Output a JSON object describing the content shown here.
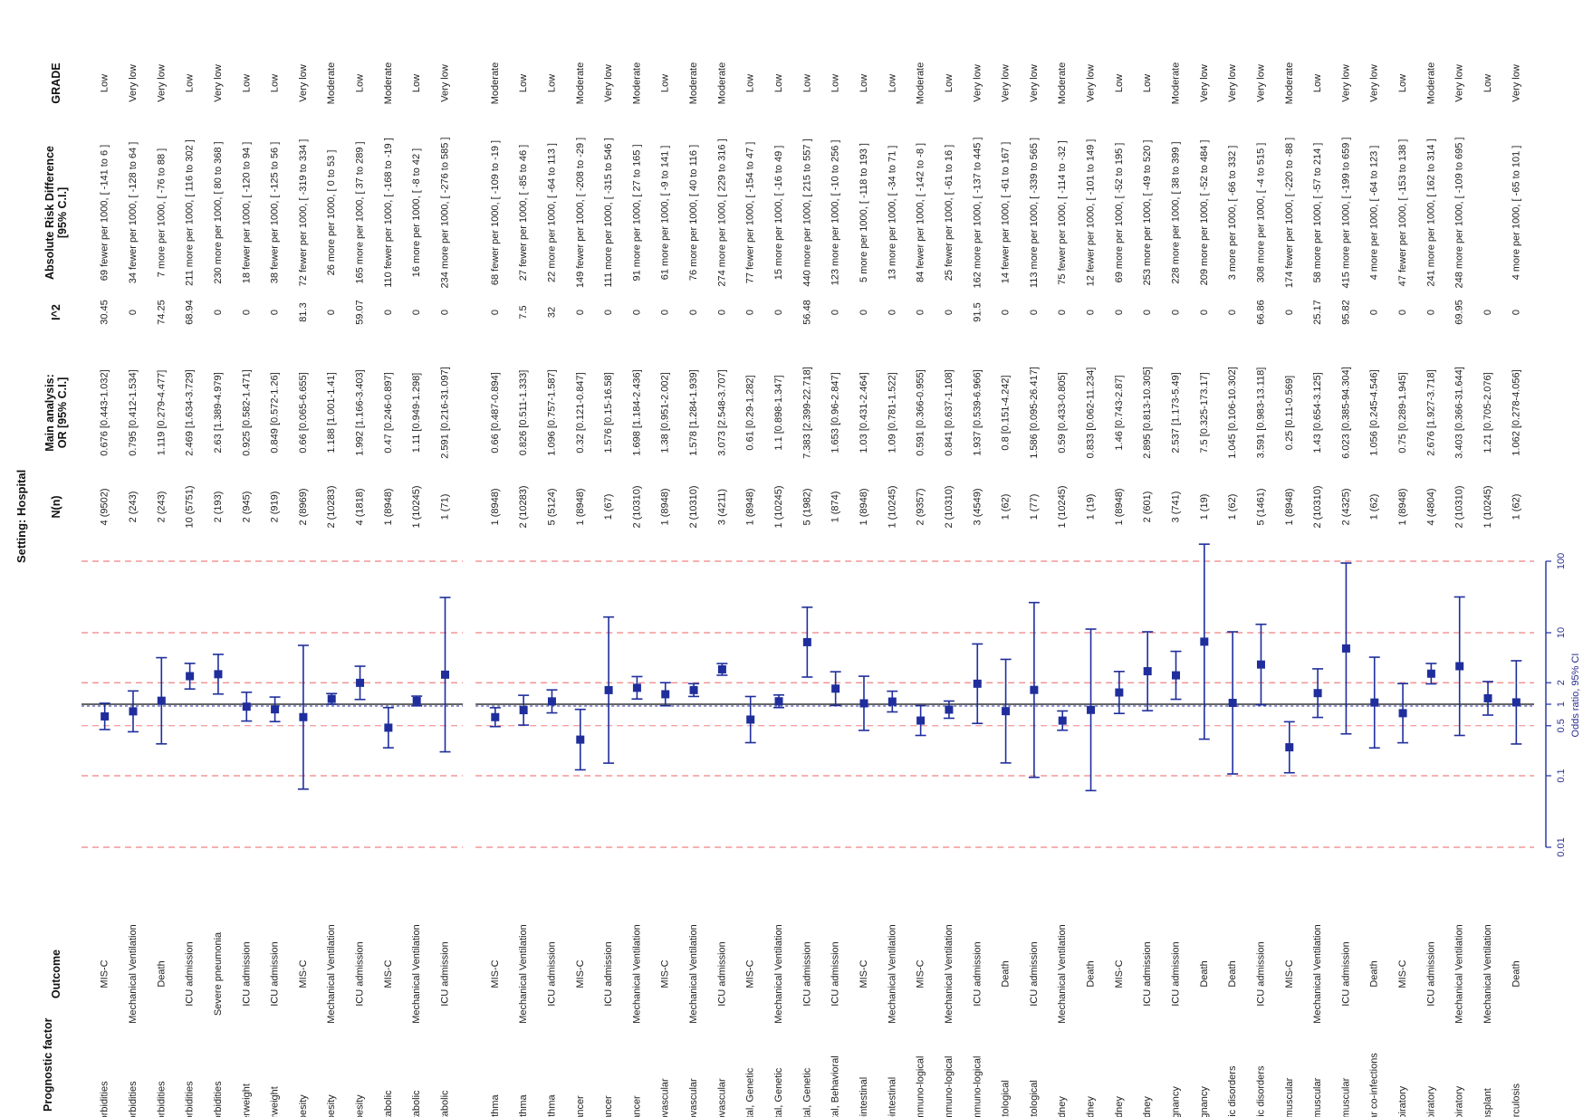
{
  "title": "Setting: Hospital",
  "headers": {
    "factor": "Prognostic factor",
    "outcome": "Outcome",
    "n": "N(n)",
    "or_line1": "Main analysis:",
    "or_line2": "OR [95% C.I.]",
    "i2": "I^2",
    "ard_line1": "Absolute Risk Difference",
    "ard_line2": "[95% C.I.]",
    "grade": "GRADE"
  },
  "axis_label": "Odds ratio, 95% CI",
  "colors": {
    "marker": "#1f2e9c",
    "ref_line": "#1f2e9c",
    "grid_dash": "#f08080",
    "text": "#222222"
  },
  "chart_data": {
    "type": "scatter",
    "subtype": "forest-plot",
    "x_scale": "log",
    "xlim": [
      0.01,
      100
    ],
    "ticks": [
      0.01,
      0.1,
      0.5,
      1,
      2,
      10,
      100
    ],
    "tick_labels": [
      "0.01",
      "0.1",
      "0.5",
      "1",
      "2",
      "10",
      "100"
    ],
    "reference_line": 1,
    "groups": [
      {
        "rows": [
          {
            "factor": "Comorbidities",
            "outcome": "MIS-C",
            "n": "4 (9502)",
            "or_text": "0.676 [0.443-1.032]",
            "i2": "30.45",
            "ard": "69 fewer per 1000, [ -141 to 6 ]",
            "grade": "Low",
            "or": 0.676,
            "lo": 0.443,
            "hi": 1.032
          },
          {
            "factor": "Comorbidities",
            "outcome": "Mechanical Ventilation",
            "n": "2 (243)",
            "or_text": "0.795 [0.412-1.534]",
            "i2": "0",
            "ard": "34 fewer per 1000, [ -128 to 64 ]",
            "grade": "Very low",
            "or": 0.795,
            "lo": 0.412,
            "hi": 1.534
          },
          {
            "factor": "Comorbidities",
            "outcome": "Death",
            "n": "2 (243)",
            "or_text": "1.119 [0.279-4.477]",
            "i2": "74.25",
            "ard": "7 more per 1000, [ -76 to 88 ]",
            "grade": "Very low",
            "or": 1.119,
            "lo": 0.279,
            "hi": 4.477
          },
          {
            "factor": "Comorbidities",
            "outcome": "ICU admission",
            "n": "10 (5751)",
            "or_text": "2.469 [1.634-3.729]",
            "i2": "68.94",
            "ard": "211 more per 1000, [ 116 to 302 ]",
            "grade": "Low",
            "or": 2.469,
            "lo": 1.634,
            "hi": 3.729
          },
          {
            "factor": "Comorbidities",
            "outcome": "Severe pneumonia",
            "n": "2 (193)",
            "or_text": "2.63 [1.389-4.979]",
            "i2": "0",
            "ard": "230 more per 1000, [ 80 to 368 ]",
            "grade": "Very low",
            "or": 2.63,
            "lo": 1.389,
            "hi": 4.979
          },
          {
            "factor": "Underweight",
            "outcome": "ICU admission",
            "n": "2 (945)",
            "or_text": "0.925 [0.582-1.471]",
            "i2": "0",
            "ard": "18 fewer per 1000, [ -120 to 94 ]",
            "grade": "Low",
            "or": 0.925,
            "lo": 0.582,
            "hi": 1.471
          },
          {
            "factor": "Overweight",
            "outcome": "ICU admission",
            "n": "2 (919)",
            "or_text": "0.849 [0.572-1.26]",
            "i2": "0",
            "ard": "38 fewer per 1000, [ -125 to 56 ]",
            "grade": "Low",
            "or": 0.849,
            "lo": 0.572,
            "hi": 1.26
          },
          {
            "factor": "Obesity",
            "outcome": "MIS-C",
            "n": "2 (8969)",
            "or_text": "0.66 [0.065-6.655]",
            "i2": "81.3",
            "ard": "72 fewer per 1000, [ -319 to 334 ]",
            "grade": "Very low",
            "or": 0.66,
            "lo": 0.065,
            "hi": 6.655
          },
          {
            "factor": "Obesity",
            "outcome": "Mechanical Ventilation",
            "n": "2 (10283)",
            "or_text": "1.188 [1.001-1.41]",
            "i2": "0",
            "ard": "26 more per 1000, [ 0 to 53 ]",
            "grade": "Moderate",
            "or": 1.188,
            "lo": 1.001,
            "hi": 1.41
          },
          {
            "factor": "Obesity",
            "outcome": "ICU admission",
            "n": "4 (1818)",
            "or_text": "1.992 [1.166-3.403]",
            "i2": "59.07",
            "ard": "165 more per 1000, [ 37 to 289 ]",
            "grade": "Low",
            "or": 1.992,
            "lo": 1.166,
            "hi": 3.403
          },
          {
            "factor": "Metabolic",
            "outcome": "MIS-C",
            "n": "1 (8948)",
            "or_text": "0.47 [0.246-0.897]",
            "i2": "0",
            "ard": "110 fewer per 1000, [ -168 to -19 ]",
            "grade": "Moderate",
            "or": 0.47,
            "lo": 0.246,
            "hi": 0.897
          },
          {
            "factor": "Metabolic",
            "outcome": "Mechanical Ventilation",
            "n": "1 (10245)",
            "or_text": "1.11 [0.949-1.298]",
            "i2": "0",
            "ard": "16 more per 1000, [ -8 to 42 ]",
            "grade": "Low",
            "or": 1.11,
            "lo": 0.949,
            "hi": 1.298
          },
          {
            "factor": "Metabolic",
            "outcome": "ICU admission",
            "n": "1 (71)",
            "or_text": "2.591 [0.216-31.097]",
            "i2": "0",
            "ard": "234 more per 1000, [ -276 to 585 ]",
            "grade": "Very low",
            "or": 2.591,
            "lo": 0.216,
            "hi": 31.097
          }
        ]
      },
      {
        "rows": [
          {
            "factor": "Asthma",
            "outcome": "MIS-C",
            "n": "1 (8948)",
            "or_text": "0.66 [0.487-0.894]",
            "i2": "0",
            "ard": "68 fewer per 1000, [ -109 to -19 ]",
            "grade": "Moderate",
            "or": 0.66,
            "lo": 0.487,
            "hi": 0.894
          },
          {
            "factor": "Asthma",
            "outcome": "Mechanical Ventilation",
            "n": "2 (10283)",
            "or_text": "0.826 [0.511-1.333]",
            "i2": "7.5",
            "ard": "27 fewer per 1000, [ -85 to 46 ]",
            "grade": "Low",
            "or": 0.826,
            "lo": 0.511,
            "hi": 1.333
          },
          {
            "factor": "Asthma",
            "outcome": "ICU admission",
            "n": "5 (5124)",
            "or_text": "1.096 [0.757-1.587]",
            "i2": "32",
            "ard": "22 more per 1000, [ -64 to 113 ]",
            "grade": "Low",
            "or": 1.096,
            "lo": 0.757,
            "hi": 1.587
          },
          {
            "factor": "Cancer",
            "outcome": "MIS-C",
            "n": "1 (8948)",
            "or_text": "0.32 [0.121-0.847]",
            "i2": "0",
            "ard": "149 fewer per 1000, [ -208 to -29 ]",
            "grade": "Moderate",
            "or": 0.32,
            "lo": 0.121,
            "hi": 0.847
          },
          {
            "factor": "Cancer",
            "outcome": "ICU admission",
            "n": "1 (67)",
            "or_text": "1.576 [0.15-16.58]",
            "i2": "0",
            "ard": "111 more per 1000, [ -315 to 546 ]",
            "grade": "Very low",
            "or": 1.576,
            "lo": 0.15,
            "hi": 16.58
          },
          {
            "factor": "Cancer",
            "outcome": "Mechanical Ventilation",
            "n": "2 (10310)",
            "or_text": "1.698 [1.184-2.436]",
            "i2": "0",
            "ard": "91 more per 1000, [ 27 to 165 ]",
            "grade": "Moderate",
            "or": 1.698,
            "lo": 1.184,
            "hi": 2.436
          },
          {
            "factor": "Cardiovascular",
            "outcome": "MIS-C",
            "n": "1 (8948)",
            "or_text": "1.38 [0.951-2.002]",
            "i2": "0",
            "ard": "61 more per 1000, [ -9 to 141 ]",
            "grade": "Low",
            "or": 1.38,
            "lo": 0.951,
            "hi": 2.002
          },
          {
            "factor": "Cardiovascular",
            "outcome": "Mechanical Ventilation",
            "n": "2 (10310)",
            "or_text": "1.578 [1.284-1.939]",
            "i2": "0",
            "ard": "76 more per 1000, [ 40 to 116 ]",
            "grade": "Moderate",
            "or": 1.578,
            "lo": 1.284,
            "hi": 1.939
          },
          {
            "factor": "Cardiovascular",
            "outcome": "ICU admission",
            "n": "3 (4211)",
            "or_text": "3.073 [2.548-3.707]",
            "i2": "0",
            "ard": "274 more per 1000, [ 229 to 316 ]",
            "grade": "Moderate",
            "or": 3.073,
            "lo": 2.548,
            "hi": 3.707
          },
          {
            "factor": "Congenital, Genetic",
            "outcome": "MIS-C",
            "n": "1 (8948)",
            "or_text": "0.61 [0.29-1.282]",
            "i2": "0",
            "ard": "77 fewer per 1000, [ -154 to 47 ]",
            "grade": "Low",
            "or": 0.61,
            "lo": 0.29,
            "hi": 1.282
          },
          {
            "factor": "Congenital, Genetic",
            "outcome": "Mechanical Ventilation",
            "n": "1 (10245)",
            "or_text": "1.1 [0.898-1.347]",
            "i2": "0",
            "ard": "15 more per 1000, [ -16 to 49 ]",
            "grade": "Low",
            "or": 1.1,
            "lo": 0.898,
            "hi": 1.347
          },
          {
            "factor": "Congenital, Genetic",
            "outcome": "ICU admission",
            "n": "5 (1982)",
            "or_text": "7.383 [2.399-22.718]",
            "i2": "56.48",
            "ard": "440 more per 1000, [ 215 to 557 ]",
            "grade": "Low",
            "or": 7.383,
            "lo": 2.399,
            "hi": 22.718
          },
          {
            "factor": "evelopmental, Behavioral",
            "outcome": "ICU admission",
            "n": "1 (874)",
            "or_text": "1.653 [0.96-2.847]",
            "i2": "0",
            "ard": "123 more per 1000, [ -10 to 256 ]",
            "grade": "Low",
            "or": 1.653,
            "lo": 0.96,
            "hi": 2.847
          },
          {
            "factor": "Gastrointestinal",
            "outcome": "MIS-C",
            "n": "1 (8948)",
            "or_text": "1.03 [0.431-2.464]",
            "i2": "0",
            "ard": "5 more per 1000, [ -118 to 193 ]",
            "grade": "Low",
            "or": 1.03,
            "lo": 0.431,
            "hi": 2.464
          },
          {
            "factor": "Gastrointestinal",
            "outcome": "Mechanical Ventilation",
            "n": "1 (10245)",
            "or_text": "1.09 [0.781-1.522]",
            "i2": "0",
            "ard": "13 more per 1000, [ -34 to 71 ]",
            "grade": "Low",
            "or": 1.09,
            "lo": 0.781,
            "hi": 1.522
          },
          {
            "factor": "Hemato-, Immuno-logical",
            "outcome": "MIS-C",
            "n": "2 (9357)",
            "or_text": "0.591 [0.366-0.955]",
            "i2": "0",
            "ard": "84 fewer per 1000, [ -142 to -8 ]",
            "grade": "Moderate",
            "or": 0.591,
            "lo": 0.366,
            "hi": 0.955
          },
          {
            "factor": "Hemato-, Immuno-logical",
            "outcome": "Mechanical Ventilation",
            "n": "2 (10310)",
            "or_text": "0.841 [0.637-1.108]",
            "i2": "0",
            "ard": "25 fewer per 1000, [ -61 to 16 ]",
            "grade": "Low",
            "or": 0.841,
            "lo": 0.637,
            "hi": 1.108
          },
          {
            "factor": "Hemato-, Immuno-logical",
            "outcome": "ICU admission",
            "n": "3 (4549)",
            "or_text": "1.937 [0.539-6.966]",
            "i2": "91.5",
            "ard": "162 more per 1000, [ -137 to 445 ]",
            "grade": "Very low",
            "or": 1.937,
            "lo": 0.539,
            "hi": 6.966
          },
          {
            "factor": "Hematological",
            "outcome": "Death",
            "n": "1 (62)",
            "or_text": "0.8 [0.151-4.242]",
            "i2": "0",
            "ard": "14 fewer per 1000, [ -61 to 167 ]",
            "grade": "Very low",
            "or": 0.8,
            "lo": 0.151,
            "hi": 4.242
          },
          {
            "factor": "Hematological",
            "outcome": "ICU admission",
            "n": "1 (77)",
            "or_text": "1.586 [0.095-26.417]",
            "i2": "0",
            "ard": "113 more per 1000, [ -339 to 565 ]",
            "grade": "Very low",
            "or": 1.586,
            "lo": 0.095,
            "hi": 26.417
          },
          {
            "factor": "Kidney",
            "outcome": "Mechanical Ventilation",
            "n": "1 (10245)",
            "or_text": "0.59 [0.433-0.805]",
            "i2": "0",
            "ard": "75 fewer per 1000, [ -114 to -32 ]",
            "grade": "Moderate",
            "or": 0.59,
            "lo": 0.433,
            "hi": 0.805
          },
          {
            "factor": "Kidney",
            "outcome": "Death",
            "n": "1 (19)",
            "or_text": "0.833 [0.062-11.234]",
            "i2": "0",
            "ard": "12 fewer per 1000, [ -101 to 149 ]",
            "grade": "Very low",
            "or": 0.833,
            "lo": 0.062,
            "hi": 11.234
          },
          {
            "factor": "Kidney",
            "outcome": "MIS-C",
            "n": "1 (8948)",
            "or_text": "1.46 [0.743-2.87]",
            "i2": "0",
            "ard": "69 more per 1000, [ -52 to 195 ]",
            "grade": "Low",
            "or": 1.46,
            "lo": 0.743,
            "hi": 2.87
          },
          {
            "factor": "Kidney",
            "outcome": "ICU admission",
            "n": "2 (601)",
            "or_text": "2.895 [0.813-10.305]",
            "i2": "0",
            "ard": "253 more per 1000, [ -49 to 520 ]",
            "grade": "Low",
            "or": 2.895,
            "lo": 0.813,
            "hi": 10.305
          },
          {
            "factor": "Malignancy",
            "outcome": "ICU admission",
            "n": "3 (741)",
            "or_text": "2.537 [1.173-5.49]",
            "i2": "0",
            "ard": "228 more per 1000, [ 38 to 399 ]",
            "grade": "Moderate",
            "or": 2.537,
            "lo": 1.173,
            "hi": 5.49
          },
          {
            "factor": "Malignancy",
            "outcome": "Death",
            "n": "1 (19)",
            "or_text": "7.5 [0.325-173.17]",
            "i2": "0",
            "ard": "209 more per 1000, [ -52 to 484 ]",
            "grade": "Very low",
            "or": 7.5,
            "lo": 0.325,
            "hi": 173.17
          },
          {
            "factor": "Neurologic disorders",
            "outcome": "Death",
            "n": "1 (62)",
            "or_text": "1.045 [0.106-10.302]",
            "i2": "0",
            "ard": "3 more per 1000, [ -66 to 332 ]",
            "grade": "Very low",
            "or": 1.045,
            "lo": 0.106,
            "hi": 10.302
          },
          {
            "factor": "Neurologic disorders",
            "outcome": "ICU admission",
            "n": "5 (1461)",
            "or_text": "3.591 [0.983-13.118]",
            "i2": "66.86",
            "ard": "308 more per 1000, [ -4 to 515 ]",
            "grade": "Very low",
            "or": 3.591,
            "lo": 0.983,
            "hi": 13.118
          },
          {
            "factor": "Neuromuscular",
            "outcome": "MIS-C",
            "n": "1 (8948)",
            "or_text": "0.25 [0.11-0.569]",
            "i2": "0",
            "ard": "174 fewer per 1000, [ -220 to -88 ]",
            "grade": "Moderate",
            "or": 0.25,
            "lo": 0.11,
            "hi": 0.569
          },
          {
            "factor": "Neuromuscular",
            "outcome": "Mechanical Ventilation",
            "n": "2 (10310)",
            "or_text": "1.43 [0.654-3.125]",
            "i2": "25.17",
            "ard": "58 more per 1000, [ -57 to 214 ]",
            "grade": "Low",
            "or": 1.43,
            "lo": 0.654,
            "hi": 3.125
          },
          {
            "factor": "Neuromuscular",
            "outcome": "ICU admission",
            "n": "2 (4325)",
            "or_text": "6.023 [0.385-94.304]",
            "i2": "95.82",
            "ard": "415 more per 1000, [ -199 to 659 ]",
            "grade": "Very low",
            "or": 6.023,
            "lo": 0.385,
            "hi": 94.304
          },
          {
            "factor": "on-tubercular co-infections",
            "outcome": "Death",
            "n": "1 (62)",
            "or_text": "1.056 [0.245-4.546]",
            "i2": "0",
            "ard": "4 more per 1000, [ -64 to 123 ]",
            "grade": "Very low",
            "or": 1.056,
            "lo": 0.245,
            "hi": 4.546
          },
          {
            "factor": "Respiratory",
            "outcome": "MIS-C",
            "n": "1 (8948)",
            "or_text": "0.75 [0.289-1.945]",
            "i2": "0",
            "ard": "47 fewer per 1000, [ -153 to 138 ]",
            "grade": "Low",
            "or": 0.75,
            "lo": 0.289,
            "hi": 1.945
          },
          {
            "factor": "Respiratory",
            "outcome": "ICU admission",
            "n": "4 (4804)",
            "or_text": "2.676 [1.927-3.718]",
            "i2": "0",
            "ard": "241 more per 1000, [ 162 to 314 ]",
            "grade": "Moderate",
            "or": 2.676,
            "lo": 1.927,
            "hi": 3.718
          },
          {
            "factor": "Respiratory",
            "outcome": "Mechanical Ventilation",
            "n": "2 (10310)",
            "or_text": "3.403 [0.366-31.644]",
            "i2": "69.95",
            "ard": "248 more per 1000, [ -109 to 695 ]",
            "grade": "Very low",
            "or": 3.403,
            "lo": 0.366,
            "hi": 31.644
          },
          {
            "factor": "Transplant",
            "outcome": "Mechanical Ventilation",
            "n": "1 (10245)",
            "or_text": "1.21 [0.705-2.076]",
            "i2": "0",
            "ard": "",
            "grade": "Low",
            "or": 1.21,
            "lo": 0.705,
            "hi": 2.076
          },
          {
            "factor": "Tuberculosis",
            "outcome": "Death",
            "n": "1 (62)",
            "or_text": "1.062 [0.278-4.056]",
            "i2": "0",
            "ard": "4 more per 1000, [ -65 to 101 ]",
            "grade": "Very low",
            "or": 1.062,
            "lo": 0.278,
            "hi": 4.056
          }
        ]
      }
    ]
  }
}
